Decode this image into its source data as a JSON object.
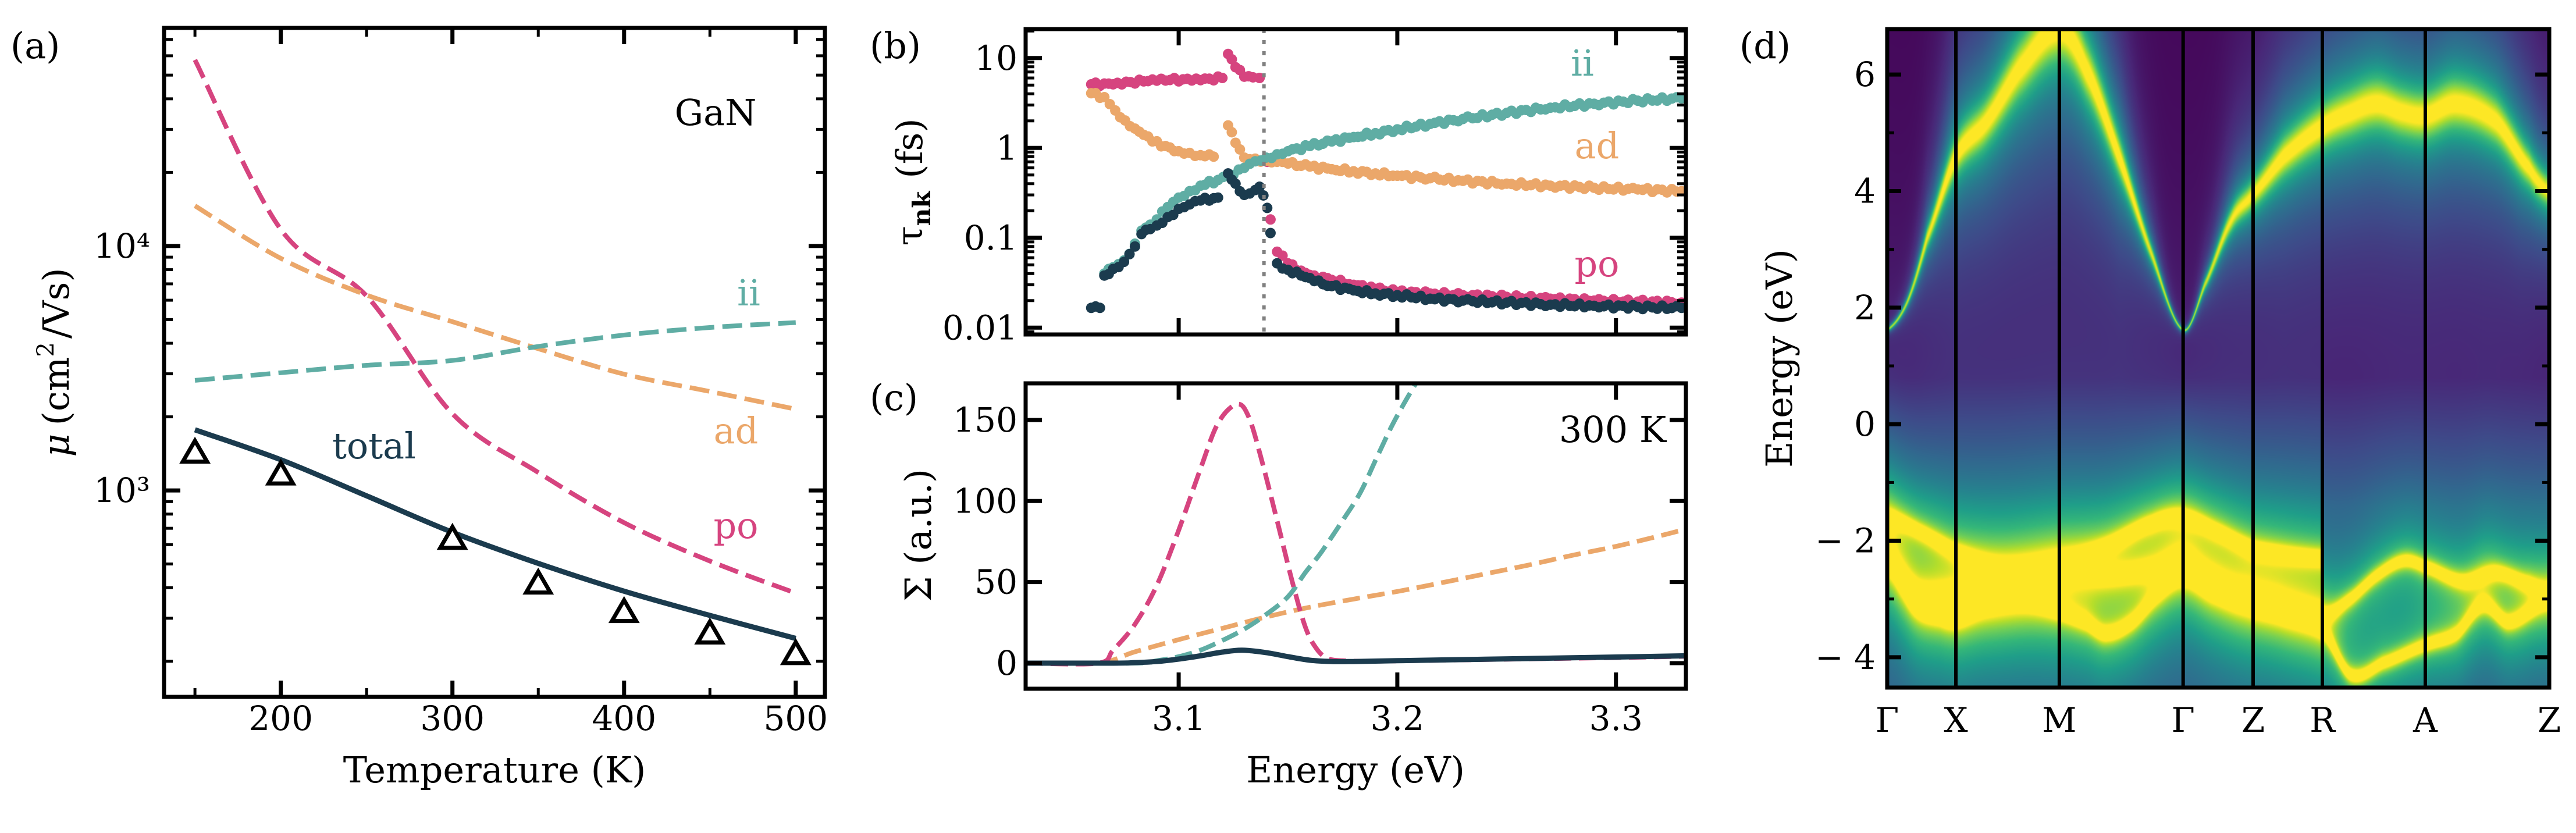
{
  "figure": {
    "colors": {
      "po": "#d6447f",
      "ad": "#eba76a",
      "ii": "#5fada4",
      "total": "#1b3b4e",
      "experiment": "#000000",
      "vline": "#808080"
    }
  },
  "chart_data": [
    {
      "panel": "(a)",
      "type": "line",
      "title": "",
      "annotation": "GaN",
      "xlabel": "Temperature (K)",
      "ylabel": "μ (cm²/Vs)",
      "yscale": "log",
      "xlim": [
        132,
        517
      ],
      "ylim": [
        143,
        78000
      ],
      "xticks": [
        200,
        300,
        400,
        500
      ],
      "yticks": [
        {
          "value": 1000,
          "label": "10³"
        },
        {
          "value": 10000,
          "label": "10⁴"
        }
      ],
      "x": [
        150,
        200,
        250,
        300,
        350,
        400,
        450,
        500
      ],
      "series": [
        {
          "name": "po",
          "label": "po",
          "style": "dashed",
          "values": [
            57700,
            11700,
            6240,
            2060,
            1184,
            738,
            514,
            380
          ]
        },
        {
          "name": "ad",
          "label": "ad",
          "style": "dashed",
          "values": [
            14600,
            8900,
            6300,
            4900,
            3800,
            2990,
            2540,
            2150
          ]
        },
        {
          "name": "ii",
          "label": "ii",
          "style": "dashed",
          "values": [
            2820,
            3030,
            3250,
            3400,
            3880,
            4320,
            4640,
            4860
          ]
        },
        {
          "name": "total",
          "label": "total",
          "style": "solid",
          "values": [
            1770,
            1335,
            950,
            674,
            503,
            387,
            308,
            248
          ]
        }
      ],
      "markers": {
        "name": "experiment",
        "shape": "triangle",
        "x": [
          150,
          200,
          300,
          350,
          400,
          450,
          500
        ],
        "values": [
          1400,
          1140,
          622,
          408,
          312,
          255,
          210
        ]
      },
      "grid": false,
      "legend": "inline labels"
    },
    {
      "panel": "(b)",
      "type": "scatter",
      "xlabel": "",
      "ylabel": "τnk (fs)",
      "ylabel_main": "τ",
      "ylabel_sub": "nk",
      "ylabel_unit": "(fs)",
      "yscale": "log",
      "xlim": [
        3.03,
        3.332
      ],
      "ylim": [
        0.0084,
        21
      ],
      "xticks": [
        3.1,
        3.2,
        3.3
      ],
      "yticks": [
        {
          "value": 0.01,
          "label": "0.01"
        },
        {
          "value": 0.1,
          "label": "0.1"
        },
        {
          "value": 1,
          "label": "1"
        },
        {
          "value": 10,
          "label": "10"
        }
      ],
      "vline": 3.139,
      "series": [
        {
          "name": "po",
          "label": "po",
          "x": [
            3.06,
            3.066,
            3.072,
            3.078,
            3.084,
            3.09,
            3.096,
            3.102,
            3.108,
            3.114,
            3.12,
            3.1226,
            3.126,
            3.13,
            3.134,
            3.137,
            3.1405,
            3.142,
            3.145,
            3.15,
            3.156,
            3.162,
            3.17,
            3.18,
            3.19,
            3.2,
            3.215,
            3.23,
            3.25,
            3.27,
            3.29,
            3.31,
            3.33
          ],
          "values": [
            5.1,
            5.2,
            5.3,
            5.4,
            5.5,
            5.6,
            5.7,
            5.8,
            5.9,
            5.9,
            6.0,
            11.1,
            7.9,
            6.2,
            6.1,
            6.0,
            0.7,
            0.16,
            0.07,
            0.052,
            0.043,
            0.038,
            0.034,
            0.03,
            0.027,
            0.025,
            0.024,
            0.023,
            0.022,
            0.021,
            0.02,
            0.0195,
            0.019
          ]
        },
        {
          "name": "ad",
          "label": "ad",
          "x": [
            3.06,
            3.066,
            3.071,
            3.0755,
            3.08,
            3.084,
            3.088,
            3.094,
            3.1,
            3.105,
            3.11,
            3.116,
            3.1226,
            3.126,
            3.13,
            3.135,
            3.14,
            3.145,
            3.15,
            3.16,
            3.17,
            3.18,
            3.19,
            3.2,
            3.215,
            3.23,
            3.25,
            3.27,
            3.29,
            3.31,
            3.33
          ],
          "values": [
            4.06,
            3.67,
            2.61,
            2.02,
            1.64,
            1.4,
            1.18,
            1.05,
            0.92,
            0.88,
            0.83,
            0.8,
            1.78,
            1.14,
            0.78,
            0.76,
            0.72,
            0.7,
            0.67,
            0.62,
            0.58,
            0.55,
            0.52,
            0.49,
            0.46,
            0.43,
            0.4,
            0.38,
            0.36,
            0.345,
            0.33
          ]
        },
        {
          "name": "ii",
          "label": "ii",
          "x": [
            3.066,
            3.07,
            3.075,
            3.08,
            3.083,
            3.087,
            3.09,
            3.095,
            3.1,
            3.105,
            3.11,
            3.118,
            3.125,
            3.13,
            3.135,
            3.14,
            3.145,
            3.15,
            3.16,
            3.17,
            3.18,
            3.19,
            3.2,
            3.215,
            3.23,
            3.25,
            3.27,
            3.29,
            3.31,
            3.33
          ],
          "values": [
            0.04,
            0.047,
            0.056,
            0.086,
            0.12,
            0.14,
            0.16,
            0.22,
            0.28,
            0.33,
            0.38,
            0.44,
            0.5,
            0.6,
            0.71,
            0.78,
            0.85,
            0.92,
            1.05,
            1.18,
            1.32,
            1.46,
            1.61,
            1.85,
            2.1,
            2.45,
            2.8,
            3.1,
            3.35,
            3.57
          ]
        },
        {
          "name": "total",
          "label": "",
          "x": [
            3.06,
            3.064,
            3.066,
            3.07,
            3.075,
            3.08,
            3.083,
            3.087,
            3.09,
            3.095,
            3.1,
            3.105,
            3.11,
            3.118,
            3.1226,
            3.126,
            3.13,
            3.135,
            3.137,
            3.1405,
            3.142,
            3.145,
            3.15,
            3.156,
            3.162,
            3.17,
            3.18,
            3.19,
            3.2,
            3.215,
            3.23,
            3.25,
            3.27,
            3.29,
            3.31,
            3.33
          ],
          "values": [
            0.0166,
            0.0166,
            0.038,
            0.045,
            0.054,
            0.08,
            0.11,
            0.125,
            0.137,
            0.17,
            0.21,
            0.235,
            0.26,
            0.28,
            0.52,
            0.4,
            0.3,
            0.34,
            0.37,
            0.215,
            0.113,
            0.052,
            0.044,
            0.038,
            0.033,
            0.029,
            0.026,
            0.024,
            0.023,
            0.021,
            0.02,
            0.019,
            0.018,
            0.0175,
            0.017,
            0.0166
          ]
        }
      ],
      "grid": false,
      "legend": "inline labels"
    },
    {
      "panel": "(c)",
      "type": "line",
      "annotation": "300 K",
      "xlabel": "Energy (eV)",
      "ylabel": "Σ (a.u.)",
      "xlim": [
        3.03,
        3.332
      ],
      "ylim": [
        -15.8,
        172.6
      ],
      "xticks": [
        3.1,
        3.2,
        3.3
      ],
      "yticks": [
        0,
        50,
        100,
        150
      ],
      "series": [
        {
          "name": "po",
          "style": "dashed",
          "x": [
            3.03,
            3.063,
            3.07,
            3.08,
            3.09,
            3.1,
            3.11,
            3.118,
            3.1266,
            3.132,
            3.138,
            3.145,
            3.152,
            3.158,
            3.163,
            3.168,
            3.175,
            3.19,
            3.22,
            3.26,
            3.3,
            3.332
          ],
          "values": [
            0,
            0,
            8,
            24,
            48,
            82,
            120,
            148,
            159.7,
            152,
            125,
            88,
            50,
            22,
            9,
            3,
            1.5,
            1.2,
            1.8,
            2.6,
            3.4,
            4.2
          ]
        },
        {
          "name": "ad",
          "style": "dashed",
          "x": [
            3.03,
            3.063,
            3.08,
            3.1,
            3.12,
            3.14,
            3.16,
            3.18,
            3.2,
            3.22,
            3.24,
            3.26,
            3.28,
            3.3,
            3.32,
            3.332
          ],
          "values": [
            0,
            0,
            7,
            14.5,
            21.5,
            28.5,
            34.5,
            39.5,
            44.2,
            49.5,
            55,
            60.5,
            66.5,
            72,
            78.5,
            82.7
          ]
        },
        {
          "name": "ii",
          "style": "dashed",
          "x": [
            3.03,
            3.08,
            3.09,
            3.1,
            3.11,
            3.12,
            3.13,
            3.14,
            3.15,
            3.158,
            3.165,
            3.175,
            3.183,
            3.19,
            3.197,
            3.203,
            3.2085
          ],
          "values": [
            0,
            0,
            1.5,
            4,
            8,
            14,
            21,
            30,
            41,
            56,
            68,
            88,
            105,
            125,
            145,
            160,
            172.6
          ]
        },
        {
          "name": "total",
          "style": "solid",
          "x": [
            3.03,
            3.07,
            3.08,
            3.09,
            3.1,
            3.11,
            3.12,
            3.129,
            3.14,
            3.15,
            3.16,
            3.17,
            3.18,
            3.2,
            3.24,
            3.28,
            3.332
          ],
          "values": [
            0,
            0,
            0.3,
            1,
            2.5,
            4.5,
            6.8,
            8,
            6.5,
            4,
            1.8,
            1.0,
            1.0,
            1.5,
            2.4,
            3.3,
            4.5
          ]
        }
      ],
      "grid": false
    },
    {
      "panel": "(d)",
      "type": "heatmap",
      "colormap": "viridis",
      "ylabel": "Energy (eV)",
      "ylim": [
        -4.52,
        6.78
      ],
      "yticks": [
        {
          "value": -4,
          "label": "− 4"
        },
        {
          "value": -2,
          "label": "− 2"
        },
        {
          "value": 0,
          "label": "0"
        },
        {
          "value": 2,
          "label": "2"
        },
        {
          "value": 4,
          "label": "4"
        },
        {
          "value": 6,
          "label": "6"
        }
      ],
      "kpath_labels": [
        "Γ",
        "X",
        "M",
        "Γ",
        "Z",
        "R",
        "A",
        "Z"
      ],
      "kpath_positions": [
        0,
        0.1037,
        0.26,
        0.447,
        0.5527,
        0.6573,
        0.8128,
        1.0
      ],
      "bands": [
        {
          "name": "conduction",
          "width": 0.06,
          "spread": 1.0,
          "k": [
            0,
            0.03,
            0.06,
            0.1037,
            0.15,
            0.2,
            0.26,
            0.3,
            0.35,
            0.4,
            0.447,
            0.48,
            0.52,
            0.5527,
            0.6,
            0.6573,
            0.7,
            0.74,
            0.78,
            0.8128,
            0.86,
            0.92,
            0.97,
            1.0
          ],
          "E": [
            1.62,
            2.1,
            3.2,
            4.6,
            5.2,
            6.1,
            6.78,
            6.1,
            4.6,
            2.9,
            1.62,
            2.4,
            3.5,
            3.95,
            4.6,
            5.1,
            5.35,
            5.5,
            5.35,
            5.3,
            5.5,
            5.2,
            4.4,
            4.0
          ]
        },
        {
          "name": "valence-1",
          "width": 0.12,
          "spread": 0.5,
          "k": [
            0,
            0.05,
            0.1037,
            0.18,
            0.26,
            0.33,
            0.4,
            0.447,
            0.5,
            0.5527,
            0.6573
          ],
          "E": [
            -1.6,
            -1.85,
            -2.2,
            -2.5,
            -2.4,
            -2.1,
            -1.7,
            -1.6,
            -1.85,
            -2.15,
            -2.3
          ]
        },
        {
          "name": "valence-2",
          "width": 0.12,
          "spread": 0.5,
          "k": [
            0,
            0.02,
            0.05,
            0.1037,
            0.18,
            0.26,
            0.33,
            0.4,
            0.447,
            0.48,
            0.52,
            0.5527,
            0.6573,
            0.7,
            0.74,
            0.78,
            0.8128,
            0.87,
            0.92,
            0.97,
            1.0
          ],
          "E": [
            -2.3,
            -2.6,
            -2.9,
            -2.9,
            -2.8,
            -2.5,
            -2.6,
            -2.5,
            -2.35,
            -2.6,
            -2.9,
            -3.05,
            -3.3,
            -3.0,
            -2.6,
            -2.35,
            -2.45,
            -2.7,
            -2.55,
            -2.75,
            -2.9
          ]
        },
        {
          "name": "valence-3",
          "width": 0.12,
          "spread": 0.6,
          "k": [
            0,
            0.04,
            0.08,
            0.1037,
            0.15,
            0.2,
            0.26,
            0.3,
            0.33,
            0.37,
            0.41,
            0.447,
            0.49,
            0.5527,
            0.6,
            0.6573,
            0.7,
            0.75,
            0.8128,
            0.86,
            0.9,
            0.94,
            1.0
          ],
          "E": [
            -2.3,
            -3.1,
            -3.3,
            -3.35,
            -3.1,
            -3.0,
            -3.2,
            -3.4,
            -3.6,
            -3.4,
            -2.9,
            -2.6,
            -2.85,
            -3.05,
            -3.2,
            -3.5,
            -4.3,
            -4.1,
            -3.8,
            -3.6,
            -3.1,
            -3.4,
            -3.0
          ]
        }
      ]
    }
  ],
  "panels": {
    "a": {
      "label": "(a)",
      "annotation": "GaN",
      "xlabel": "Temperature (K)",
      "ylabel_mu": "μ",
      "ylabel_unit_open": "(cm",
      "ylabel_sup": "2",
      "ylabel_unit_close": "/Vs)",
      "labels": {
        "ii": "ii",
        "ad": "ad",
        "po": "po",
        "total": "total"
      }
    },
    "b": {
      "label": "(b)",
      "ylabel_main": "τ",
      "ylabel_sub": "nk",
      "ylabel_unit": "(fs)",
      "labels": {
        "ii": "ii",
        "ad": "ad",
        "po": "po"
      }
    },
    "c": {
      "label": "(c)",
      "annotation": "300 K",
      "xlabel": "Energy (eV)",
      "ylabel": "Σ (a.u.)"
    },
    "d": {
      "label": "(d)",
      "ylabel": "Energy (eV)"
    }
  }
}
